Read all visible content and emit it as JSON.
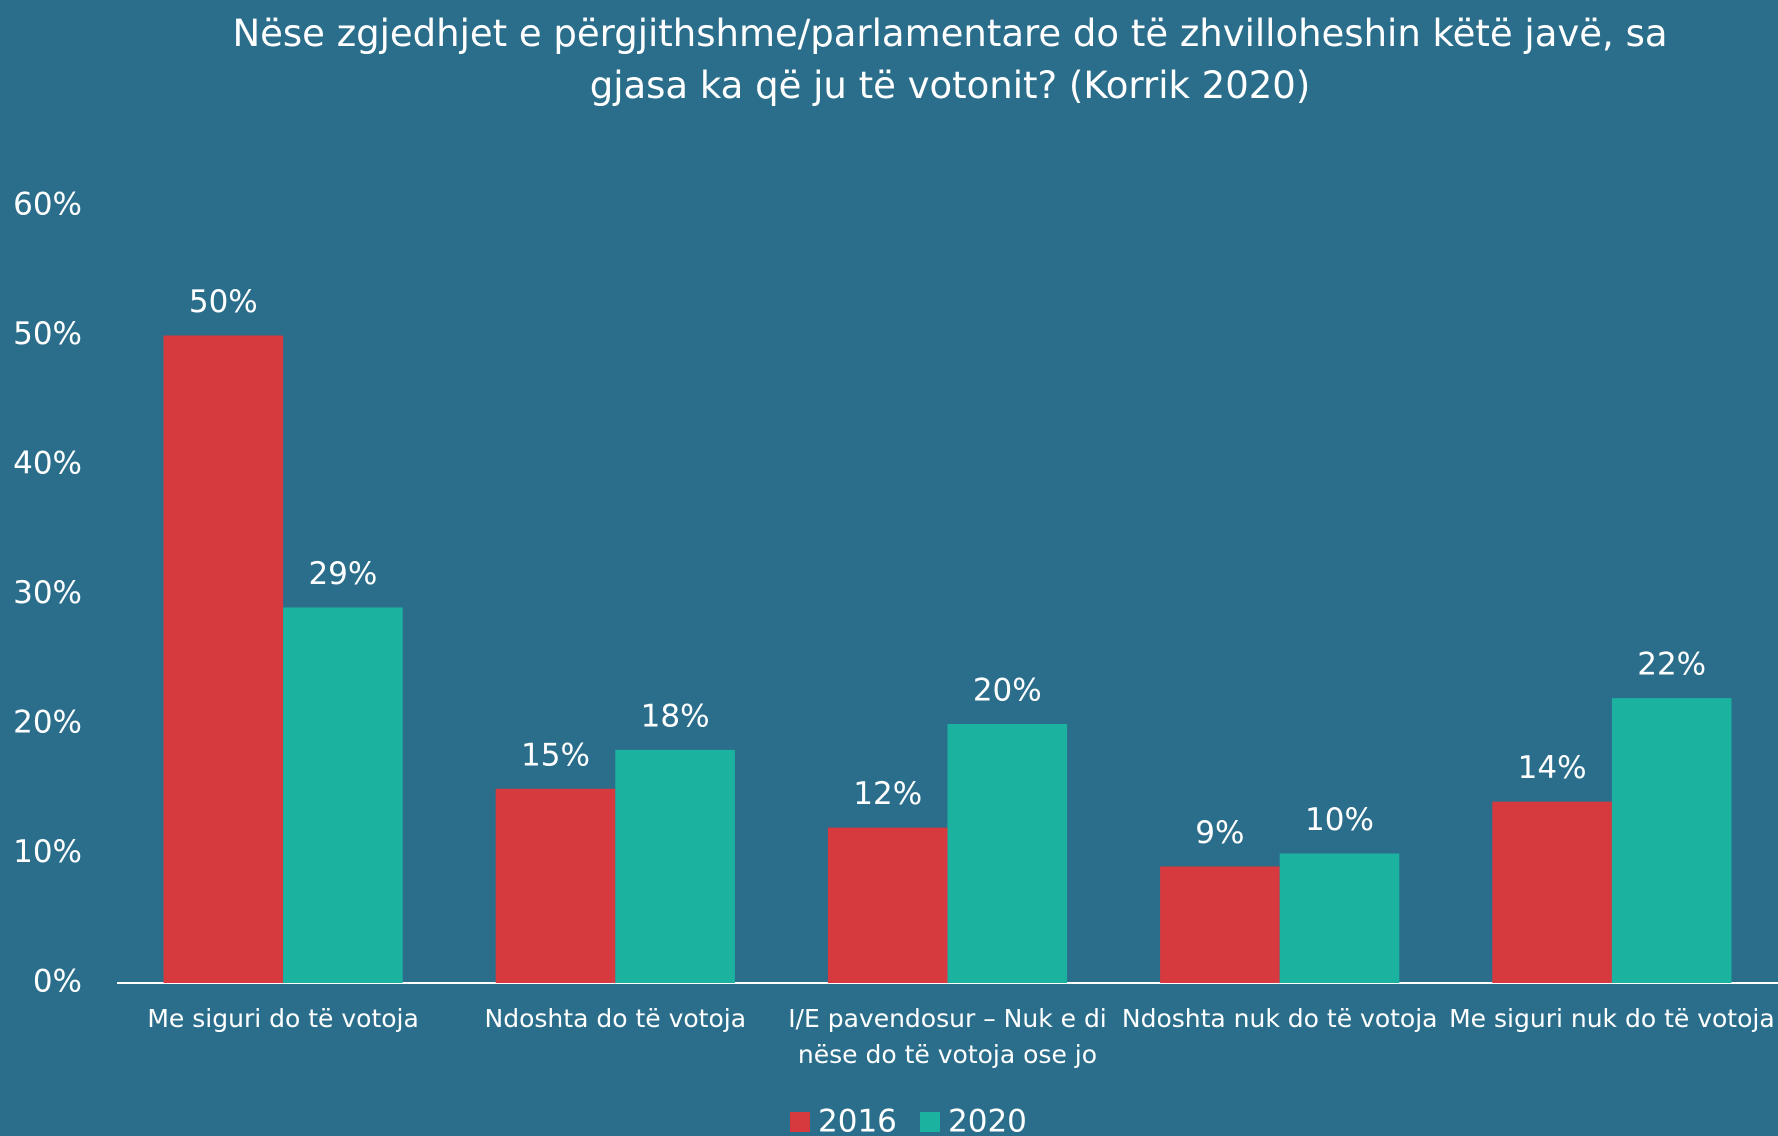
{
  "chart_data": {
    "type": "bar",
    "title": "Nëse zgjedhjet e përgjithshme/parlamentare do të zhvilloheshin këtë javë, sa gjasa ka që ju të votonit? (Korrik 2020)",
    "categories": [
      "Me siguri do të votoja",
      "Ndoshta do të votoja",
      "I/E pavendosur – Nuk e di nëse do të votoja ose jo",
      "Ndoshta nuk do të votoja",
      "Me siguri nuk do të votoja"
    ],
    "series": [
      {
        "name": "2016",
        "color": "#d63a3f",
        "values": [
          50,
          15,
          12,
          9,
          14
        ],
        "value_labels": [
          "50%",
          "15%",
          "12%",
          "9%",
          "14%"
        ]
      },
      {
        "name": "2020",
        "color": "#1bb3a0",
        "values": [
          29,
          18,
          20,
          10,
          22
        ],
        "value_labels": [
          "29%",
          "18%",
          "20%",
          "10%",
          "22%"
        ]
      }
    ],
    "ylim": [
      0,
      60
    ],
    "yticks": [
      {
        "value": 0,
        "label": "0%"
      },
      {
        "value": 10,
        "label": "10%"
      },
      {
        "value": 20,
        "label": "20%"
      },
      {
        "value": 30,
        "label": "30%"
      },
      {
        "value": 40,
        "label": "40%"
      },
      {
        "value": 50,
        "label": "50%"
      },
      {
        "value": 60,
        "label": "60%"
      }
    ],
    "grid": false,
    "legend": "bottom"
  }
}
